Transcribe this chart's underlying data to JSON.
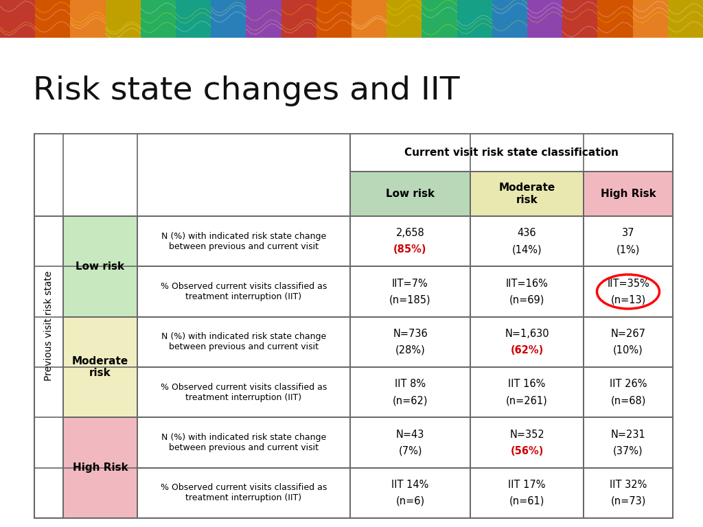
{
  "title": "Risk state changes and IIT",
  "title_fontsize": 34,
  "background_color": "#ffffff",
  "col_header_main": "Current visit risk state classification",
  "col_headers": [
    "Low risk",
    "Moderate\nrisk",
    "High Risk"
  ],
  "col_header_colors": [
    "#b8d8b8",
    "#e8e8b0",
    "#f2b8c0"
  ],
  "row_category_colors": [
    "#c8e8c0",
    "#f0eec0",
    "#f2b8c0"
  ],
  "row_labels": [
    "N (%) with indicated risk state change\nbetween previous and current visit",
    "% Observed current visits classified as\ntreatment interruption (IIT)",
    "N (%) with indicated risk state change\nbetween previous and current visit",
    "% Observed current visits classified as\ntreatment interruption (IIT)",
    "N (%) with indicated risk state change\nbetween previous and current visit",
    "% Observed current visits classified as\ntreatment interruption (IIT)"
  ],
  "cell_data": [
    [
      {
        "line1": "2,658",
        "line2": "(85%)",
        "line2_red": true,
        "line1_bold": false
      },
      {
        "line1": "436",
        "line2": "(14%)",
        "line2_red": false,
        "line1_bold": false
      },
      {
        "line1": "37",
        "line2": "(1%)",
        "line2_red": false,
        "line1_bold": false
      }
    ],
    [
      {
        "line1": "IIT=7%",
        "line2": "(n=185)",
        "line2_red": false,
        "line1_bold": false
      },
      {
        "line1": "IIT=16%",
        "line2": "(n=69)",
        "line2_red": false,
        "line1_bold": false
      },
      {
        "line1": "IIT=35%",
        "line2": "(n=13)",
        "line2_red": false,
        "line1_bold": false,
        "circled": true
      }
    ],
    [
      {
        "line1": "N=736",
        "line2": "(28%)",
        "line2_red": false,
        "line1_bold": false
      },
      {
        "line1": "N=1,630",
        "line2": "(62%)",
        "line2_red": true,
        "line1_bold": false
      },
      {
        "line1": "N=267",
        "line2": "(10%)",
        "line2_red": false,
        "line1_bold": false
      }
    ],
    [
      {
        "line1": "IIT 8%",
        "line2": "(n=62)",
        "line2_red": false,
        "line1_bold": false
      },
      {
        "line1": "IIT 16%",
        "line2": "(n=261)",
        "line2_red": false,
        "line1_bold": false
      },
      {
        "line1": "IIT 26%",
        "line2": "(n=68)",
        "line2_red": false,
        "line1_bold": false
      }
    ],
    [
      {
        "line1": "N=43",
        "line2": "(7%)",
        "line2_red": false,
        "line1_bold": false
      },
      {
        "line1": "N=352",
        "line2": "(56%)",
        "line2_red": true,
        "line1_bold": false
      },
      {
        "line1": "N=231",
        "line2": "(37%)",
        "line2_red": false,
        "line1_bold": false
      }
    ],
    [
      {
        "line1": "IIT 14%",
        "line2": "(n=6)",
        "line2_red": false,
        "line1_bold": false
      },
      {
        "line1": "IIT 17%",
        "line2": "(n=61)",
        "line2_red": false,
        "line1_bold": false
      },
      {
        "line1": "IIT 32%",
        "line2": "(n=73)",
        "line2_red": false,
        "line1_bold": false
      }
    ]
  ],
  "red_color": "#cc0000",
  "black_color": "#000000",
  "border_color": "#666666",
  "rotated_label": "Previous visit risk state",
  "header_stripe_colors": [
    "#c0392b",
    "#d35400",
    "#e67e22",
    "#c0a000",
    "#27ae60",
    "#16a085",
    "#2980b9",
    "#8e44ad",
    "#c0392b",
    "#d35400",
    "#e67e22",
    "#c0a000",
    "#27ae60",
    "#16a085",
    "#2980b9",
    "#8e44ad",
    "#c0392b",
    "#d35400",
    "#e67e22",
    "#c0a000"
  ]
}
